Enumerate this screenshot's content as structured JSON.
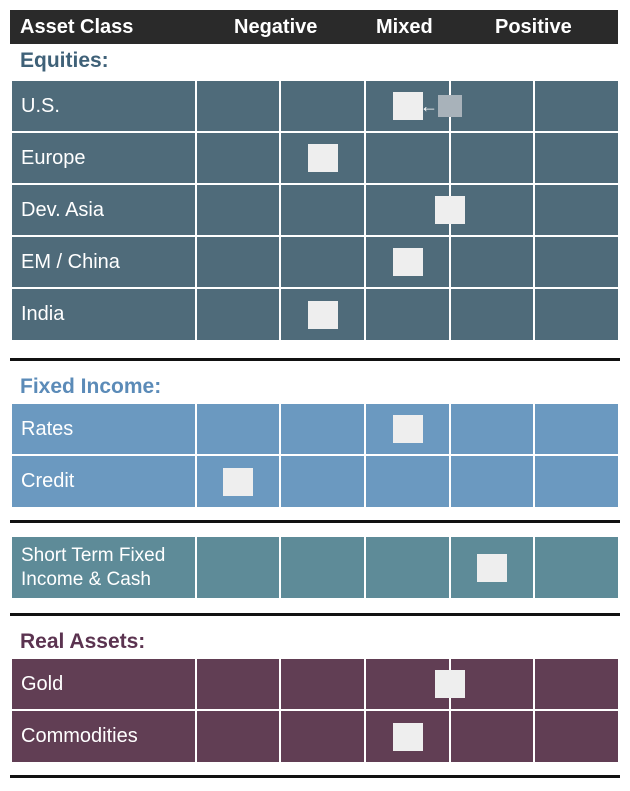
{
  "header": {
    "asset_class": "Asset Class",
    "negative": "Negative",
    "mixed": "Mixed",
    "positive": "Positive"
  },
  "colors": {
    "equities": "#4f6b7a",
    "fixed_income": "#6b99c0",
    "short_term": "#5e8b98",
    "real_assets": "#613e54",
    "marker": "#eeeeee"
  },
  "sections": [
    {
      "id": "equities",
      "title": "Equities:",
      "title_color": "#3f6178",
      "rows": [
        {
          "label": "U.S.",
          "position": 3,
          "previous_position": 3.5,
          "arrow": "←"
        },
        {
          "label": "Europe",
          "position": 2
        },
        {
          "label": "Dev. Asia",
          "position": 3.5
        },
        {
          "label": "EM / China",
          "position": 3
        },
        {
          "label": "India",
          "position": 2
        }
      ]
    },
    {
      "id": "fixed_income",
      "title": "Fixed Income:",
      "title_color": "#5b8bb8",
      "rows": [
        {
          "label": "Rates",
          "position": 3
        },
        {
          "label": "Credit",
          "position": 1
        }
      ]
    },
    {
      "id": "short_term",
      "title": "",
      "rows": [
        {
          "label_line1": "Short Term Fixed",
          "label_line2": "Income & Cash",
          "position": 4
        }
      ]
    },
    {
      "id": "real_assets",
      "title": "Real Assets:",
      "title_color": "#5b3350",
      "rows": [
        {
          "label": "Gold",
          "position": 3.5
        },
        {
          "label": "Commodities",
          "position": 3
        }
      ]
    }
  ]
}
